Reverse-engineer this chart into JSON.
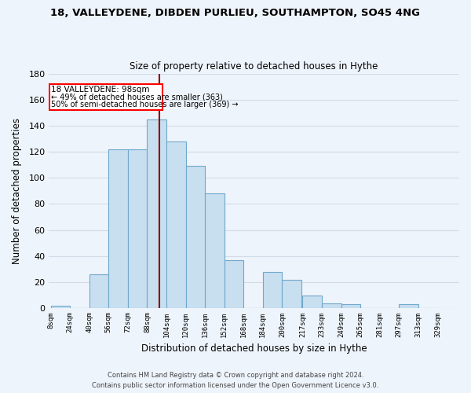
{
  "title1": "18, VALLEYDENE, DIBDEN PURLIEU, SOUTHAMPTON, SO45 4NG",
  "title2": "Size of property relative to detached houses in Hythe",
  "xlabel": "Distribution of detached houses by size in Hythe",
  "ylabel": "Number of detached properties",
  "bar_color": "#c8dff0",
  "bar_edge_color": "#6fa8cc",
  "vline_x": 98,
  "vline_color": "#8b0000",
  "annotation_title": "18 VALLEYDENE: 98sqm",
  "annotation_line1": "← 49% of detached houses are smaller (363)",
  "annotation_line2": "50% of semi-detached houses are larger (369) →",
  "bins": [
    8,
    24,
    40,
    56,
    72,
    88,
    104,
    120,
    136,
    152,
    168,
    184,
    200,
    217,
    233,
    249,
    265,
    281,
    297,
    313,
    329
  ],
  "counts": [
    2,
    0,
    26,
    122,
    122,
    145,
    128,
    109,
    88,
    37,
    0,
    28,
    22,
    10,
    4,
    3,
    0,
    0,
    3,
    0
  ],
  "ylim": [
    0,
    180
  ],
  "yticks": [
    0,
    20,
    40,
    60,
    80,
    100,
    120,
    140,
    160,
    180
  ],
  "footer1": "Contains HM Land Registry data © Crown copyright and database right 2024.",
  "footer2": "Contains public sector information licensed under the Open Government Licence v3.0.",
  "bg_color": "#eef4fb",
  "grid_color": "#d0dce8"
}
